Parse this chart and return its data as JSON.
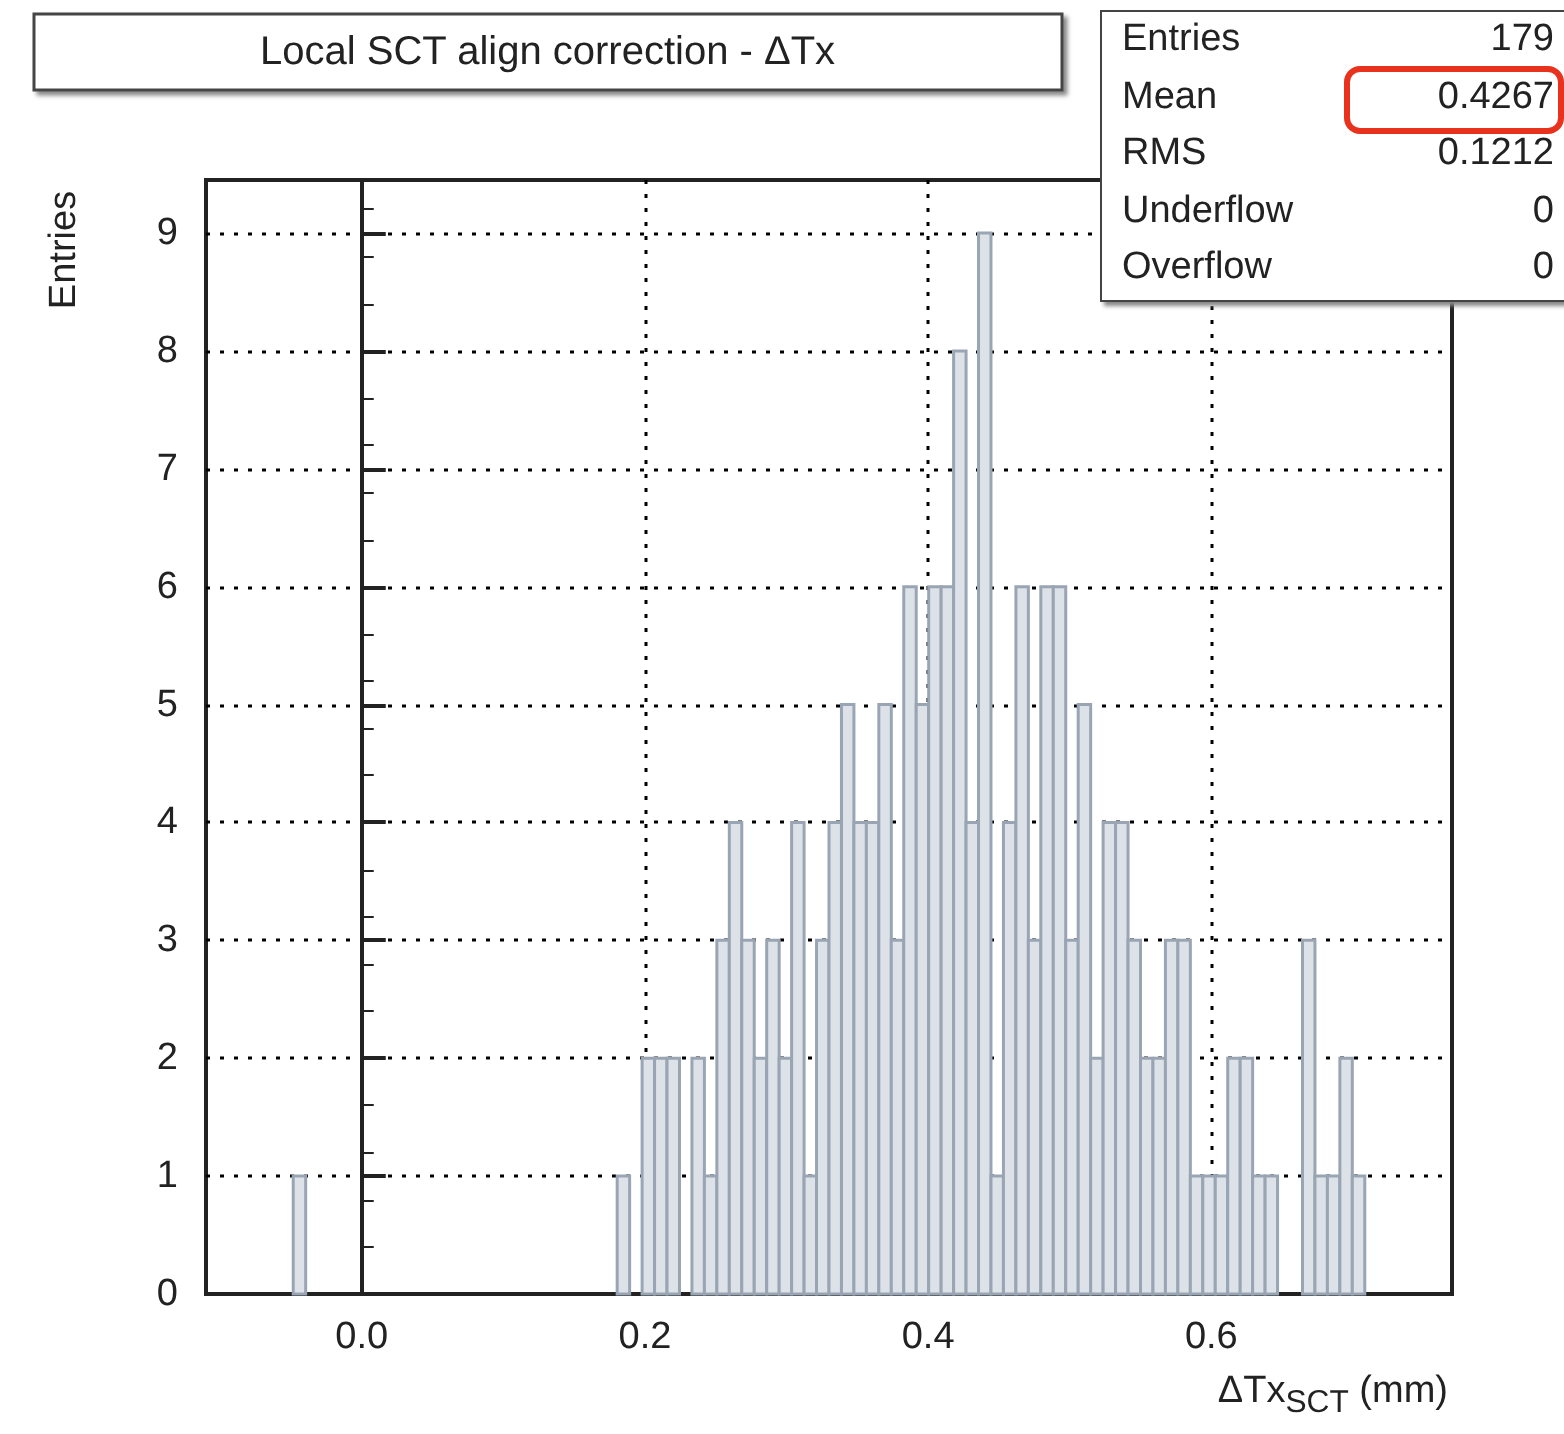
{
  "chart_data": {
    "type": "histogram",
    "title": "Local SCT align correction - ΔTx",
    "xlabel": "ΔTx$_{SCT}$ (mm)",
    "ylabel": "Entries",
    "bins": [
      -0.11,
      -0.1012,
      -0.0924,
      -0.0836,
      -0.0748,
      -0.066,
      -0.0572,
      -0.0484,
      -0.0396,
      -0.0308,
      -0.022,
      -0.0132,
      -0.0044,
      0.0044,
      0.0132,
      0.022,
      0.0308,
      0.0396,
      0.0484,
      0.0572,
      0.066,
      0.0748,
      0.0836,
      0.0924,
      0.1012,
      0.11,
      0.1188,
      0.1276,
      0.1364,
      0.1452,
      0.154,
      0.1628,
      0.1716,
      0.1804,
      0.1892,
      0.198,
      0.2068,
      0.2156,
      0.2244,
      0.2332,
      0.242,
      0.2508,
      0.2596,
      0.2684,
      0.2772,
      0.286,
      0.2948,
      0.3036,
      0.3124,
      0.3212,
      0.33,
      0.3388,
      0.3476,
      0.3564,
      0.3652,
      0.374,
      0.3828,
      0.3916,
      0.4004,
      0.4092,
      0.418,
      0.4268,
      0.4356,
      0.4444,
      0.4532,
      0.462,
      0.4708,
      0.4796,
      0.4884,
      0.4972,
      0.506,
      0.5148,
      0.5236,
      0.5324,
      0.5412,
      0.55,
      0.5588,
      0.5676,
      0.5764,
      0.5852,
      0.594,
      0.6028,
      0.6116,
      0.6204,
      0.6292,
      0.638,
      0.6468,
      0.6556,
      0.6644,
      0.6732,
      0.682,
      0.6908,
      0.6996,
      0.7084,
      0.7172,
      0.726,
      0.7348,
      0.7436,
      0.7524,
      0.7612,
      0.77
    ],
    "values": [
      0,
      0,
      0,
      0,
      0,
      0,
      0,
      1,
      0,
      0,
      0,
      0,
      0,
      0,
      0,
      0,
      0,
      0,
      0,
      0,
      0,
      0,
      0,
      0,
      0,
      0,
      0,
      0,
      0,
      0,
      0,
      0,
      0,
      1,
      0,
      2,
      2,
      2,
      0,
      2,
      1,
      3,
      4,
      3,
      2,
      3,
      2,
      4,
      1,
      3,
      4,
      5,
      4,
      4,
      5,
      3,
      6,
      5,
      6,
      6,
      8,
      4,
      9,
      1,
      4,
      6,
      3,
      6,
      6,
      3,
      5,
      2,
      4,
      4,
      3,
      2,
      2,
      3,
      3,
      1,
      1,
      1,
      2,
      2,
      1,
      1,
      0,
      0,
      3,
      1,
      1,
      2,
      1,
      0,
      0,
      0,
      0,
      0,
      0,
      0
    ],
    "color": "#dde2e8",
    "xlim": [
      -0.11,
      0.77
    ],
    "xticks": [
      {
        "value": 0,
        "label": "0.0"
      },
      0.2,
      0.4,
      0.6
    ],
    "ylim": [
      0,
      9.45
    ],
    "yticks": [
      0,
      1,
      2,
      3,
      4,
      5,
      6,
      7,
      8,
      9
    ],
    "grid": true,
    "annotations": [
      "Entries 179",
      "Mean 0.4267",
      "RMS 0.1212",
      "Underflow 0",
      "Overflow 0"
    ]
  }
}
